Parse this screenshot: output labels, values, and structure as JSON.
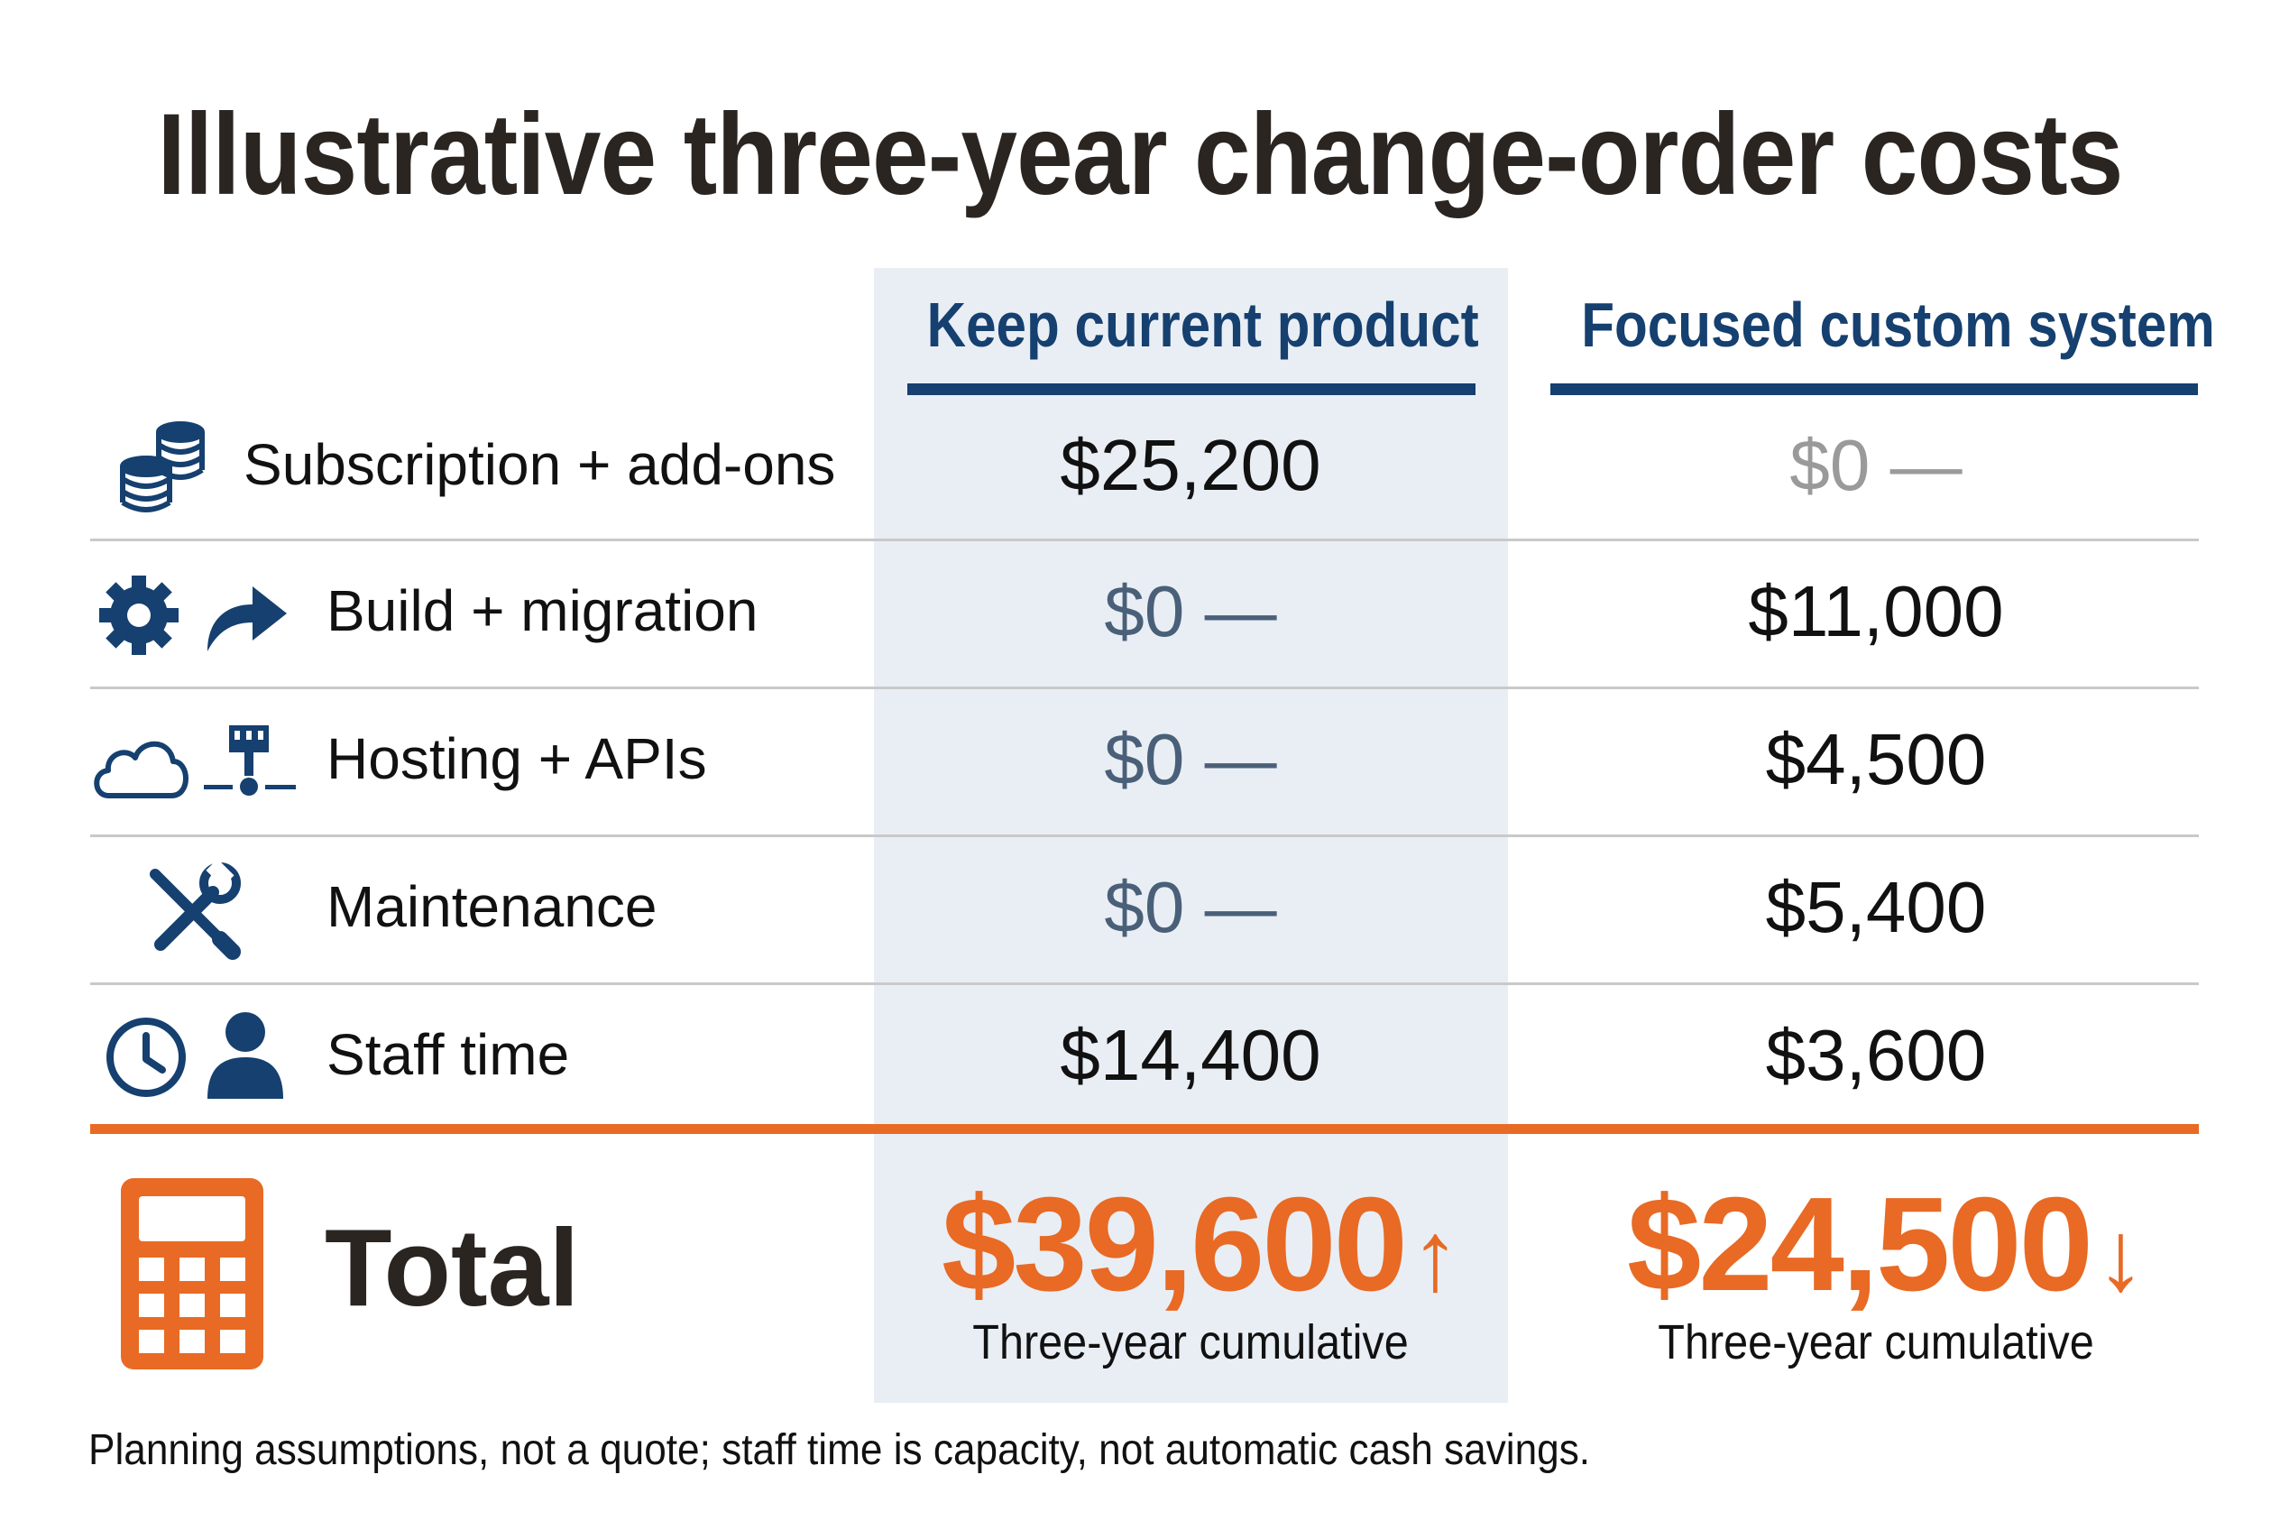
{
  "title": "Illustrative three-year change-order costs",
  "columns": {
    "keep_current": "Keep current product",
    "custom_system": "Focused custom system"
  },
  "rows": [
    {
      "label": "Subscription + add-ons",
      "icons": [
        "coin-stack-icon"
      ],
      "keep_current": "$25,200",
      "custom_system": "$0 —"
    },
    {
      "label": "Build + migration",
      "icons": [
        "gear-icon",
        "forward-arrow-icon"
      ],
      "keep_current": "$0 —",
      "custom_system": "$11,000"
    },
    {
      "label": "Hosting + APIs",
      "icons": [
        "cloud-icon",
        "network-icon"
      ],
      "keep_current": "$0 —",
      "custom_system": "$4,500"
    },
    {
      "label": "Maintenance",
      "icons": [
        "wrench-screwdriver-icon"
      ],
      "keep_current": "$0 —",
      "custom_system": "$5,400"
    },
    {
      "label": "Staff time",
      "icons": [
        "clock-icon",
        "person-icon"
      ],
      "keep_current": "$14,400",
      "custom_system": "$3,600"
    }
  ],
  "total": {
    "label": "Total",
    "icon": "calculator-icon",
    "keep_current": "$39,600",
    "keep_current_trend": "↑",
    "custom_system": "$24,500",
    "custom_system_trend": "↓",
    "note": "Three-year cumulative"
  },
  "footnote": "Planning assumptions, not a quote; staff time is capacity, not automatic cash savings.",
  "colors": {
    "navy": "#15406f",
    "orange": "#e86a24",
    "shade": "#e9eef5",
    "title": "#2b2522"
  }
}
